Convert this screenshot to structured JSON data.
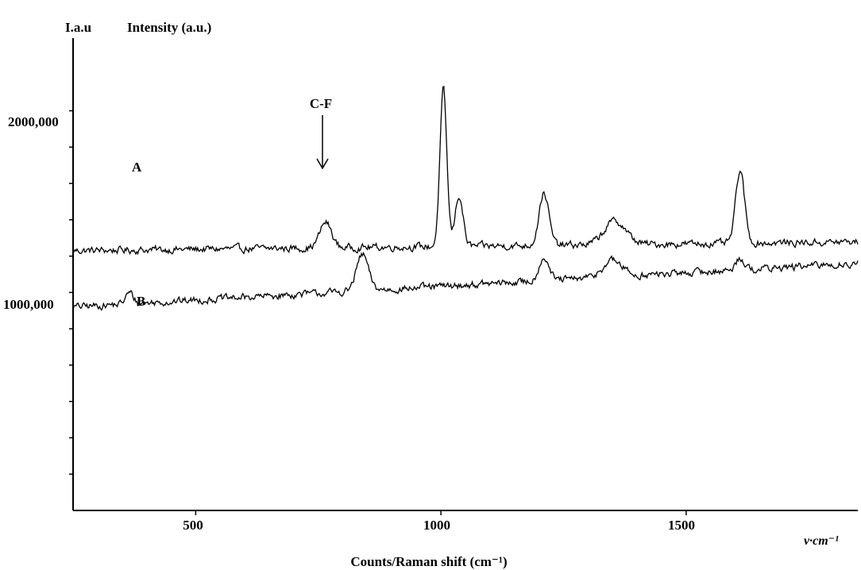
{
  "chart_data": {
    "type": "line",
    "title": "",
    "ylabel_short": "I.a.u",
    "ylabel": "Intensity (a.u.)",
    "xlabel": "Counts/Raman shift (cm⁻¹)",
    "xunit": "ν·cm⁻¹",
    "xlim": [
      250,
      1850
    ],
    "ylim": [
      0,
      2600000
    ],
    "grid": false,
    "legend": "none",
    "x_ticks": [
      500,
      1000,
      1500
    ],
    "x_tick_labels": [
      "500",
      "1000",
      "1500"
    ],
    "y_ticks": [
      1000000,
      2000000
    ],
    "y_tick_labels": [
      "1000,000",
      "2000,000"
    ],
    "line_color": "#000000",
    "series": [
      {
        "name": "A",
        "baseline": 1430000,
        "noise": 18000,
        "slope_per_cm": 30,
        "peaks": [
          {
            "x": 765,
            "height": 140000,
            "width": 12
          },
          {
            "x": 1005,
            "height": 860000,
            "width": 7
          },
          {
            "x": 1037,
            "height": 280000,
            "width": 8
          },
          {
            "x": 1210,
            "height": 290000,
            "width": 10
          },
          {
            "x": 1355,
            "height": 130000,
            "width": 22
          },
          {
            "x": 1610,
            "height": 400000,
            "width": 9
          }
        ]
      },
      {
        "name": "B",
        "baseline": 1120000,
        "noise": 18000,
        "slope_per_cm": 150,
        "peaks": [
          {
            "x": 365,
            "height": 60000,
            "width": 8
          },
          {
            "x": 840,
            "height": 200000,
            "width": 12
          },
          {
            "x": 1210,
            "height": 130000,
            "width": 10
          },
          {
            "x": 1350,
            "height": 90000,
            "width": 20
          },
          {
            "x": 1610,
            "height": 70000,
            "width": 8
          }
        ]
      }
    ],
    "annotations": [
      {
        "text": "C-F",
        "x": 765,
        "arrow": true
      },
      {
        "text": "A",
        "series": "A"
      },
      {
        "text": "B",
        "series": "B"
      }
    ]
  }
}
